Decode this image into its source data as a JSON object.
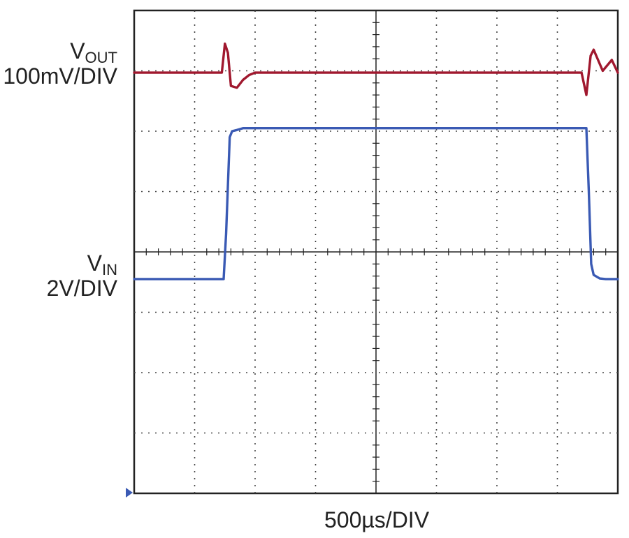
{
  "chart_data": {
    "type": "line",
    "title": "",
    "xlabel": "500µs/DIV",
    "grid": true,
    "divisions": {
      "x": 8,
      "y": 8
    },
    "x_units": "divisions",
    "series": [
      {
        "name": "VOUT",
        "label_main": "V",
        "label_sub": "OUT",
        "scale": "100mV/DIV",
        "color": "#a0182e",
        "x": [
          0,
          1.45,
          1.5,
          1.55,
          1.6,
          1.7,
          1.8,
          1.9,
          2.0,
          2.5,
          3,
          4,
          5,
          6,
          7,
          7.4,
          7.48,
          7.55,
          7.6,
          7.75,
          7.9,
          8.0
        ],
        "y": [
          6.97,
          6.97,
          7.45,
          7.3,
          6.75,
          6.72,
          6.85,
          6.93,
          6.97,
          6.97,
          6.97,
          6.97,
          6.97,
          6.97,
          6.97,
          6.97,
          6.6,
          7.25,
          7.35,
          7.0,
          7.18,
          6.97
        ]
      },
      {
        "name": "VIN",
        "label_main": "V",
        "label_sub": "IN",
        "scale": "2V/DIV",
        "color": "#3a5ab4",
        "x": [
          0,
          1.48,
          1.52,
          1.58,
          1.62,
          1.7,
          1.8,
          2.0,
          3,
          4,
          5,
          6,
          7,
          7.48,
          7.52,
          7.56,
          7.6,
          7.7,
          7.8,
          8.0
        ],
        "y": [
          3.55,
          3.55,
          4.3,
          5.9,
          6.0,
          6.02,
          6.05,
          6.05,
          6.05,
          6.05,
          6.05,
          6.05,
          6.05,
          6.05,
          5.0,
          3.8,
          3.62,
          3.56,
          3.55,
          3.55
        ]
      }
    ]
  }
}
